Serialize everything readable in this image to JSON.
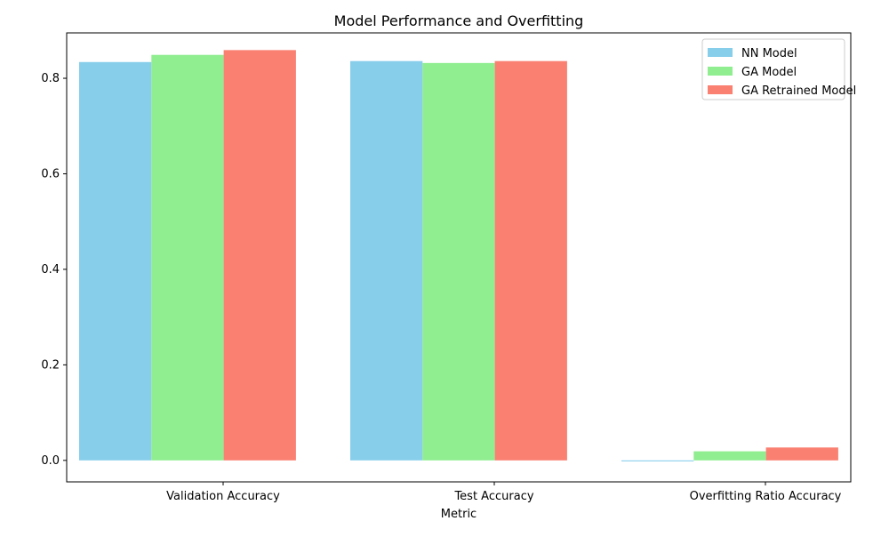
{
  "chart_data": {
    "type": "bar",
    "title": "Model Performance and Overfitting",
    "xlabel": "Metric",
    "ylabel": "",
    "ylim": [
      -0.045,
      0.895
    ],
    "yticks": [
      0.0,
      0.2,
      0.4,
      0.6,
      0.8
    ],
    "ytick_labels": [
      "0.0",
      "0.2",
      "0.4",
      "0.6",
      "0.8"
    ],
    "categories": [
      "Validation Accuracy",
      "Test Accuracy",
      "Overfitting Ratio Accuracy"
    ],
    "series": [
      {
        "name": "NN Model",
        "color": "#87ceeb",
        "values": [
          0.834,
          0.836,
          -0.002
        ]
      },
      {
        "name": "GA Model",
        "color": "#90ee90",
        "values": [
          0.849,
          0.832,
          0.019
        ]
      },
      {
        "name": "GA Retrained Model",
        "color": "#fa8072",
        "values": [
          0.859,
          0.836,
          0.027
        ]
      }
    ],
    "legend_position": "top-right",
    "grid": false
  }
}
